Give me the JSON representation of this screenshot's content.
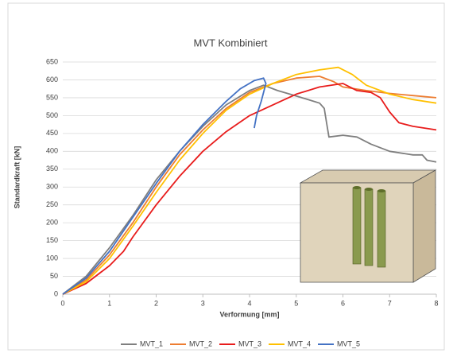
{
  "chart_data": {
    "type": "line",
    "title": "MVT Kombiniert",
    "x_label": "Verformung [mm]",
    "y_label": "Standardkraft [kN]",
    "xlim": [
      0,
      8
    ],
    "xticks": [
      0,
      1,
      2,
      3,
      4,
      5,
      6,
      7,
      8
    ],
    "ylim": [
      0,
      650
    ],
    "yticks": [
      0,
      50,
      100,
      150,
      200,
      250,
      300,
      350,
      400,
      450,
      500,
      550,
      600,
      650
    ],
    "grid": true,
    "legend": "bottom",
    "series": [
      {
        "name": "MVT_1",
        "color": "#7f7f7f",
        "x": [
          0,
          0.5,
          1,
          1.5,
          2,
          2.5,
          3,
          3.5,
          4,
          4.3,
          4.6,
          5,
          5.5,
          5.6,
          5.65,
          5.7,
          6,
          6.3,
          6.6,
          7,
          7.5,
          7.7,
          7.8,
          8
        ],
        "values": [
          0,
          50,
          130,
          220,
          320,
          400,
          470,
          530,
          570,
          585,
          570,
          555,
          535,
          520,
          480,
          440,
          445,
          440,
          420,
          400,
          390,
          390,
          375,
          370
        ]
      },
      {
        "name": "MVT_2",
        "color": "#ed7d31",
        "x": [
          0,
          0.5,
          1,
          1.5,
          2,
          2.5,
          3,
          3.5,
          4,
          4.5,
          5,
          5.5,
          5.8,
          6,
          6.5,
          7,
          7.5,
          8
        ],
        "values": [
          0,
          40,
          110,
          200,
          300,
          390,
          460,
          520,
          565,
          590,
          605,
          610,
          595,
          580,
          570,
          562,
          556,
          550
        ]
      },
      {
        "name": "MVT_3",
        "color": "#e81c1c",
        "x": [
          0,
          0.5,
          1,
          1.3,
          1.5,
          2,
          2.5,
          3,
          3.5,
          4,
          4.5,
          5,
          5.5,
          6,
          6.3,
          6.6,
          6.8,
          7,
          7.2,
          7.5,
          8
        ],
        "values": [
          0,
          30,
          80,
          120,
          160,
          250,
          330,
          400,
          455,
          500,
          530,
          560,
          580,
          590,
          570,
          565,
          550,
          510,
          480,
          470,
          460
        ]
      },
      {
        "name": "MVT_4",
        "color": "#ffc000",
        "x": [
          0,
          0.5,
          1,
          1.5,
          2,
          2.5,
          3,
          3.5,
          4,
          4.5,
          5,
          5.5,
          5.9,
          6.2,
          6.5,
          7,
          7.5,
          8
        ],
        "values": [
          0,
          35,
          100,
          190,
          285,
          375,
          450,
          515,
          560,
          590,
          615,
          628,
          635,
          615,
          585,
          560,
          545,
          535
        ]
      },
      {
        "name": "MVT_5",
        "color": "#4472c4",
        "x": [
          0,
          0.5,
          1,
          1.5,
          2,
          2.5,
          3,
          3.5,
          3.8,
          4.1,
          4.3,
          4.35,
          4.25,
          4.15,
          4.1
        ],
        "values": [
          0,
          45,
          120,
          215,
          310,
          400,
          475,
          540,
          575,
          598,
          605,
          590,
          540,
          500,
          465
        ]
      }
    ]
  }
}
